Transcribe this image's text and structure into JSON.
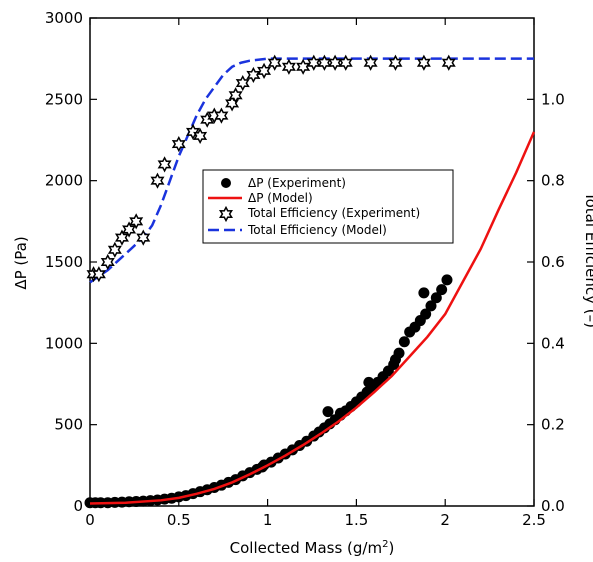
{
  "chart_data": {
    "type": "scatter",
    "xlabel": "Collected Mass (g/m",
    "xlabel_sup": "2",
    "xlabel_end": ")",
    "ylabel": "ΔP (Pa)",
    "y2label": "Total Efficiency (–)",
    "xlim": [
      0,
      2.5
    ],
    "ylim": [
      0,
      3000
    ],
    "y2lim": [
      0,
      1.2
    ],
    "x_ticks": [
      "0",
      "0.5",
      "1",
      "1.5",
      "2",
      "2.5"
    ],
    "y_ticks": [
      "0",
      "500",
      "1000",
      "1500",
      "2000",
      "2500",
      "3000"
    ],
    "y2_ticks": [
      "0.0",
      "0.2",
      "0.4",
      "0.6",
      "0.8",
      "1.0"
    ],
    "grid": false,
    "legend_position": "center",
    "colors": {
      "model_dp": "#ee1111",
      "model_eff": "#1a33dd",
      "experiment": "#000000"
    },
    "legend": {
      "dp_exp": "ΔP (Experiment)",
      "dp_model": "ΔP (Model)",
      "eff_exp": "Total Efficiency (Experiment)",
      "eff_model": "Total Efficiency (Model)"
    },
    "series": [
      {
        "name": "ΔP (Experiment)",
        "axis": "left",
        "marker": "filled-circle",
        "x": [
          0.0,
          0.03,
          0.06,
          0.1,
          0.14,
          0.18,
          0.22,
          0.26,
          0.3,
          0.34,
          0.38,
          0.42,
          0.46,
          0.5,
          0.54,
          0.58,
          0.62,
          0.66,
          0.7,
          0.74,
          0.78,
          0.82,
          0.86,
          0.9,
          0.94,
          0.98,
          1.02,
          1.06,
          1.1,
          1.14,
          1.18,
          1.22,
          1.26,
          1.29,
          1.32,
          1.35,
          1.38,
          1.41,
          1.44,
          1.47,
          1.5,
          1.53,
          1.56,
          1.59,
          1.62,
          1.65,
          1.68,
          1.71,
          1.74,
          1.77,
          1.8,
          1.83,
          1.86,
          1.89,
          1.92,
          1.95,
          1.98,
          2.01,
          1.88,
          1.72,
          1.57,
          1.41,
          1.34,
          0.97
        ],
        "y": [
          20,
          20,
          20,
          20,
          22,
          24,
          26,
          28,
          30,
          33,
          37,
          42,
          48,
          56,
          64,
          76,
          88,
          100,
          114,
          128,
          145,
          162,
          185,
          205,
          225,
          252,
          270,
          295,
          320,
          345,
          372,
          398,
          430,
          455,
          480,
          505,
          530,
          558,
          585,
          612,
          640,
          670,
          700,
          730,
          760,
          795,
          830,
          870,
          940,
          1010,
          1070,
          1100,
          1140,
          1180,
          1230,
          1280,
          1330,
          1390,
          1310,
          900,
          760,
          570,
          580,
          240
        ]
      },
      {
        "name": "ΔP (Model)",
        "axis": "left",
        "style": "solid",
        "x": [
          0.0,
          0.2,
          0.4,
          0.5,
          0.6,
          0.7,
          0.8,
          0.9,
          1.0,
          1.1,
          1.2,
          1.3,
          1.4,
          1.5,
          1.6,
          1.7,
          1.8,
          1.9,
          2.0,
          2.1,
          2.2,
          2.3,
          2.4,
          2.5
        ],
        "y": [
          15,
          20,
          35,
          50,
          75,
          105,
          145,
          195,
          250,
          310,
          375,
          445,
          520,
          605,
          700,
          800,
          920,
          1040,
          1180,
          1380,
          1580,
          1820,
          2050,
          2300
        ]
      },
      {
        "name": "Total Efficiency (Experiment)",
        "axis": "right",
        "marker": "open-star",
        "x": [
          0.02,
          0.05,
          0.1,
          0.14,
          0.18,
          0.22,
          0.26,
          0.3,
          0.38,
          0.42,
          0.5,
          0.58,
          0.62,
          0.66,
          0.7,
          0.74,
          0.8,
          0.82,
          0.86,
          0.92,
          0.98,
          1.04,
          1.12,
          1.2,
          1.26,
          1.32,
          1.38,
          1.44,
          1.58,
          1.72,
          1.88,
          2.02
        ],
        "y": [
          0.57,
          0.57,
          0.6,
          0.63,
          0.66,
          0.68,
          0.7,
          0.66,
          0.8,
          0.84,
          0.89,
          0.92,
          0.91,
          0.95,
          0.96,
          0.96,
          0.99,
          1.01,
          1.04,
          1.06,
          1.07,
          1.09,
          1.08,
          1.08,
          1.09,
          1.09,
          1.09,
          1.09,
          1.09,
          1.09,
          1.09,
          1.09
        ]
      },
      {
        "name": "Total Efficiency (Model)",
        "axis": "right",
        "style": "dashed",
        "x": [
          0.0,
          0.1,
          0.2,
          0.3,
          0.35,
          0.4,
          0.45,
          0.5,
          0.55,
          0.6,
          0.65,
          0.7,
          0.75,
          0.8,
          0.85,
          0.9,
          1.0,
          1.1,
          1.2,
          1.5,
          2.0,
          2.5
        ],
        "y": [
          0.55,
          0.58,
          0.62,
          0.66,
          0.69,
          0.74,
          0.8,
          0.86,
          0.91,
          0.96,
          1.0,
          1.03,
          1.06,
          1.08,
          1.09,
          1.095,
          1.1,
          1.1,
          1.1,
          1.1,
          1.1,
          1.1
        ]
      }
    ]
  }
}
